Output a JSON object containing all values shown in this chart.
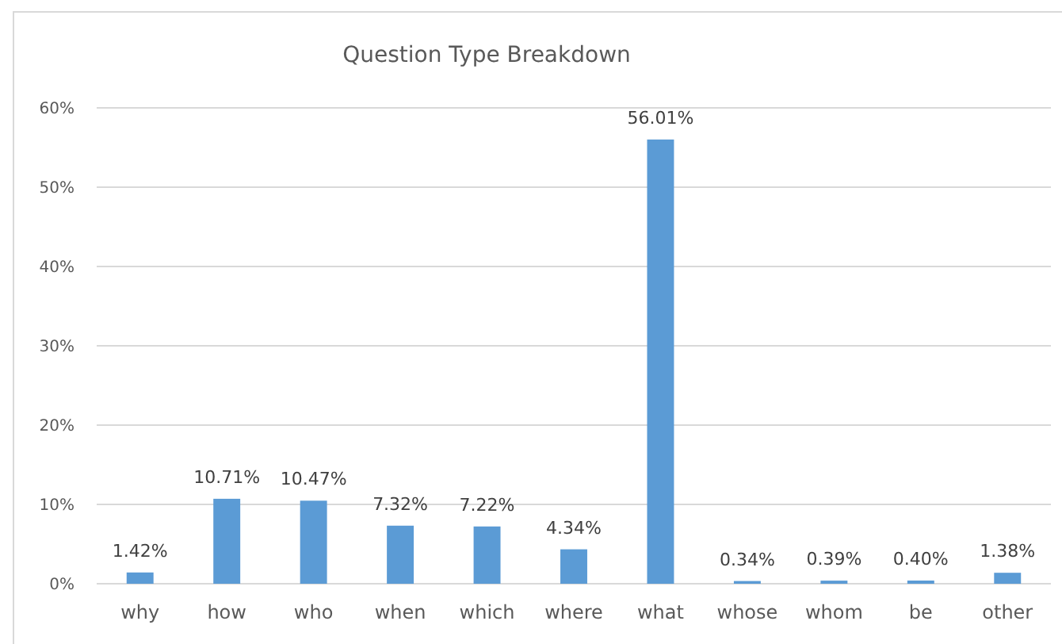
{
  "chart_data": {
    "type": "bar",
    "title": "Question Type Breakdown",
    "categories": [
      "why",
      "how",
      "who",
      "when",
      "which",
      "where",
      "what",
      "whose",
      "whom",
      "be",
      "other"
    ],
    "values": [
      1.42,
      10.71,
      10.47,
      7.32,
      7.22,
      4.34,
      56.01,
      0.34,
      0.39,
      0.4,
      1.38
    ],
    "value_labels": [
      "1.42%",
      "10.71%",
      "10.47%",
      "7.32%",
      "7.22%",
      "4.34%",
      "56.01%",
      "0.34%",
      "0.39%",
      "0.40%",
      "1.38%"
    ],
    "color": "#5b9bd5",
    "ylim": [
      0,
      60
    ],
    "yticks": [
      {
        "value": 0,
        "label": "0%"
      },
      {
        "value": 10,
        "label": "10%"
      },
      {
        "value": 20,
        "label": "20%"
      },
      {
        "value": 30,
        "label": "30%"
      },
      {
        "value": 40,
        "label": "40%"
      },
      {
        "value": 50,
        "label": "50%"
      },
      {
        "value": 60,
        "label": "60%"
      }
    ],
    "grid": "y"
  }
}
